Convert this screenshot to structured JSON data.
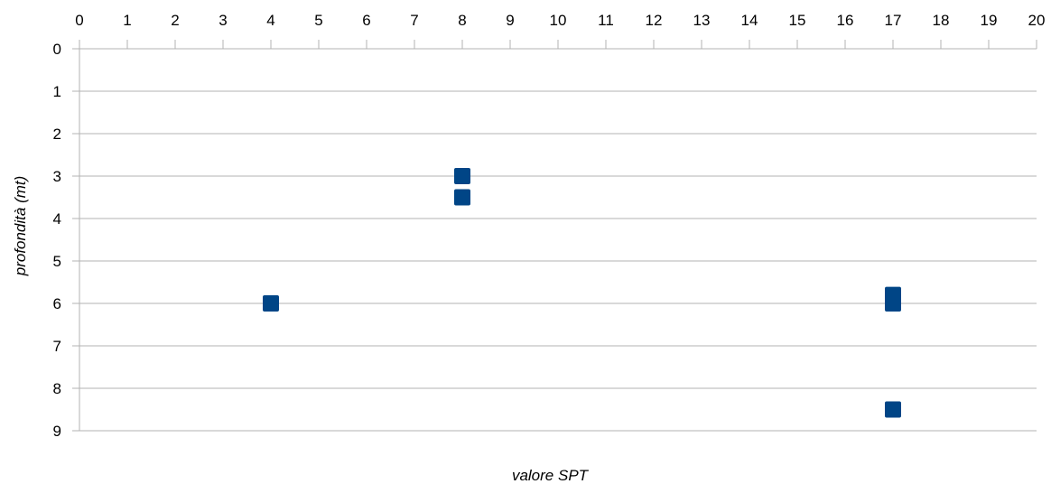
{
  "chart_data": {
    "type": "scatter",
    "title": "",
    "xlabel": "valore SPT",
    "ylabel": "profondità (mt)",
    "xlim": [
      0,
      20
    ],
    "ylim": [
      0,
      9
    ],
    "x_axis_position": "top",
    "y_axis_inverted": true,
    "x_ticks": [
      "0",
      "1",
      "2",
      "3",
      "4",
      "5",
      "6",
      "7",
      "8",
      "9",
      "10",
      "11",
      "12",
      "13",
      "14",
      "15",
      "16",
      "17",
      "18",
      "19",
      "20"
    ],
    "y_ticks": [
      "0",
      "1",
      "2",
      "3",
      "4",
      "5",
      "6",
      "7",
      "8",
      "9"
    ],
    "grid": "horizontal",
    "legend": "none",
    "marker": "square",
    "colors": {
      "marker": "#004586",
      "grid": "#b3b3b3",
      "axis": "#b3b3b3"
    },
    "series": [
      {
        "points": [
          {
            "x": 8,
            "y": 3.0
          },
          {
            "x": 8,
            "y": 3.5
          },
          {
            "x": 4,
            "y": 6.0
          },
          {
            "x": 17,
            "y": 5.8
          },
          {
            "x": 17,
            "y": 6.0
          },
          {
            "x": 17,
            "y": 8.5
          }
        ]
      }
    ]
  }
}
